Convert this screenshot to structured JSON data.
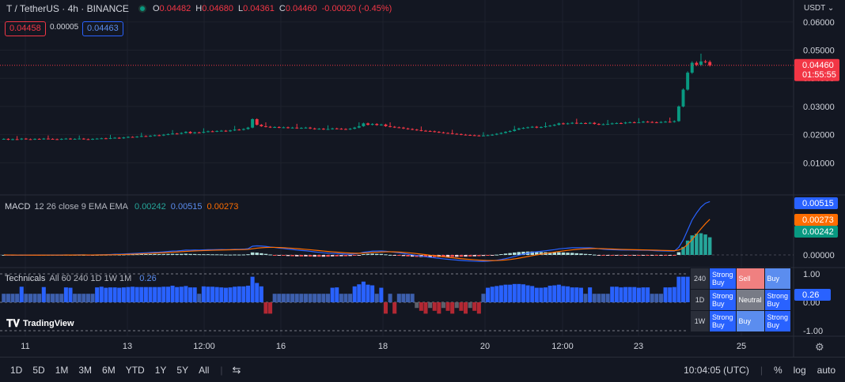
{
  "header": {
    "symbol": "T / TetherUS · 4h · BINANCE",
    "ohlc": {
      "o_label": "O",
      "o": "0.04482",
      "h_label": "H",
      "h": "0.04680",
      "l_label": "L",
      "l": "0.04361",
      "c_label": "C",
      "c": "0.04460",
      "change": "-0.00020 (-0.45%)"
    },
    "bid": "0.04458",
    "spread": "0.00005",
    "ask": "0.04463"
  },
  "price_axis": {
    "currency": "USDT",
    "ticks": [
      "0.06000",
      "0.05000",
      "0.04000",
      "0.03000",
      "0.02000",
      "0.01000"
    ],
    "last_price": "0.04460",
    "countdown": "01:55:55"
  },
  "macd": {
    "title": "MACD",
    "params": "12 26 close 9 EMA EMA",
    "hist_val": "0.00242",
    "macd_val": "0.00515",
    "signal_val": "0.00273",
    "axis_ticks": [
      "0.00000"
    ],
    "tag_macd": "0.00515",
    "tag_signal": "0.00273",
    "tag_hist": "0.00242"
  },
  "technicals": {
    "title": "Technicals",
    "params": "All 60 240 1D 1W 1M",
    "value": "0.26",
    "axis_ticks": [
      "1.00",
      "0.00",
      "-1.00"
    ],
    "tag": "0.26",
    "table": [
      {
        "tf": "240",
        "a": "Strong Buy",
        "b": "Sell",
        "c": "Buy"
      },
      {
        "tf": "1D",
        "a": "Strong Buy",
        "b": "Neutral",
        "c": "Strong Buy"
      },
      {
        "tf": "1W",
        "a": "Strong Buy",
        "b": "Buy",
        "c": "Strong Buy"
      }
    ]
  },
  "time_axis": [
    "11",
    "13",
    "12:00",
    "16",
    "18",
    "20",
    "12:00",
    "23",
    "25"
  ],
  "toolbar": {
    "timeframes": [
      "1D",
      "5D",
      "1M",
      "3M",
      "6M",
      "YTD",
      "1Y",
      "5Y",
      "All"
    ],
    "time": "10:04:05 (UTC)",
    "percent": "%",
    "log": "log",
    "auto": "auto"
  },
  "logo": "TradingView",
  "colors": {
    "up": "#089981",
    "down": "#f23645",
    "macd_line": "#2962ff",
    "signal_line": "#ff6d00",
    "bg": "#131722"
  },
  "chart_data": {
    "type": "candlestick",
    "close": [
      0.0185,
      0.0182,
      0.0184,
      0.0183,
      0.0186,
      0.0184,
      0.0183,
      0.0185,
      0.0184,
      0.0186,
      0.0185,
      0.0184,
      0.0183,
      0.0185,
      0.0186,
      0.0184,
      0.0185,
      0.0186,
      0.0184,
      0.0183,
      0.0185,
      0.0186,
      0.0187,
      0.0186,
      0.0188,
      0.0189,
      0.0187,
      0.019,
      0.0192,
      0.0191,
      0.0193,
      0.0195,
      0.0194,
      0.0196,
      0.0198,
      0.0197,
      0.02,
      0.0202,
      0.0204,
      0.0203,
      0.0206,
      0.021,
      0.0205,
      0.0208,
      0.0207,
      0.021,
      0.0212,
      0.0211,
      0.0213,
      0.0214,
      0.0212,
      0.0215,
      0.0218,
      0.0217,
      0.022,
      0.0225,
      0.0255,
      0.0235,
      0.023,
      0.0228,
      0.0226,
      0.0227,
      0.0225,
      0.0226,
      0.0224,
      0.0225,
      0.0223,
      0.0224,
      0.0225,
      0.0222,
      0.022,
      0.0221,
      0.0219,
      0.022,
      0.0222,
      0.0221,
      0.022,
      0.0219,
      0.0221,
      0.0225,
      0.023,
      0.024,
      0.0235,
      0.0238,
      0.0234,
      0.0236,
      0.023,
      0.0228,
      0.0226,
      0.0225,
      0.0222,
      0.022,
      0.0218,
      0.0216,
      0.0214,
      0.0213,
      0.0212,
      0.021,
      0.0208,
      0.0206,
      0.0205,
      0.0203,
      0.0202,
      0.02,
      0.0199,
      0.0198,
      0.0197,
      0.0196,
      0.0197,
      0.0198,
      0.02,
      0.0203,
      0.0206,
      0.021,
      0.0213,
      0.0218,
      0.0222,
      0.0224,
      0.0226,
      0.0228,
      0.0225,
      0.0227,
      0.023,
      0.0232,
      0.0235,
      0.024,
      0.0238,
      0.024,
      0.0242,
      0.024,
      0.0241,
      0.024,
      0.0242,
      0.0238,
      0.0236,
      0.0237,
      0.0238,
      0.024,
      0.0241,
      0.024,
      0.0243,
      0.0244,
      0.0243,
      0.0244,
      0.0246,
      0.0245,
      0.0244,
      0.0243,
      0.0245,
      0.0246,
      0.0245,
      0.0248,
      0.03,
      0.036,
      0.042,
      0.0455,
      0.0448,
      0.046,
      0.0458,
      0.0446
    ],
    "x_ticks": [
      "11",
      "13",
      "12:00",
      "16",
      "18",
      "20",
      "12:00",
      "23",
      "25"
    ],
    "y_ticks": [
      0.06,
      0.05,
      0.04,
      0.03,
      0.02,
      0.01
    ],
    "ylim": [
      0.0,
      0.065
    ]
  }
}
